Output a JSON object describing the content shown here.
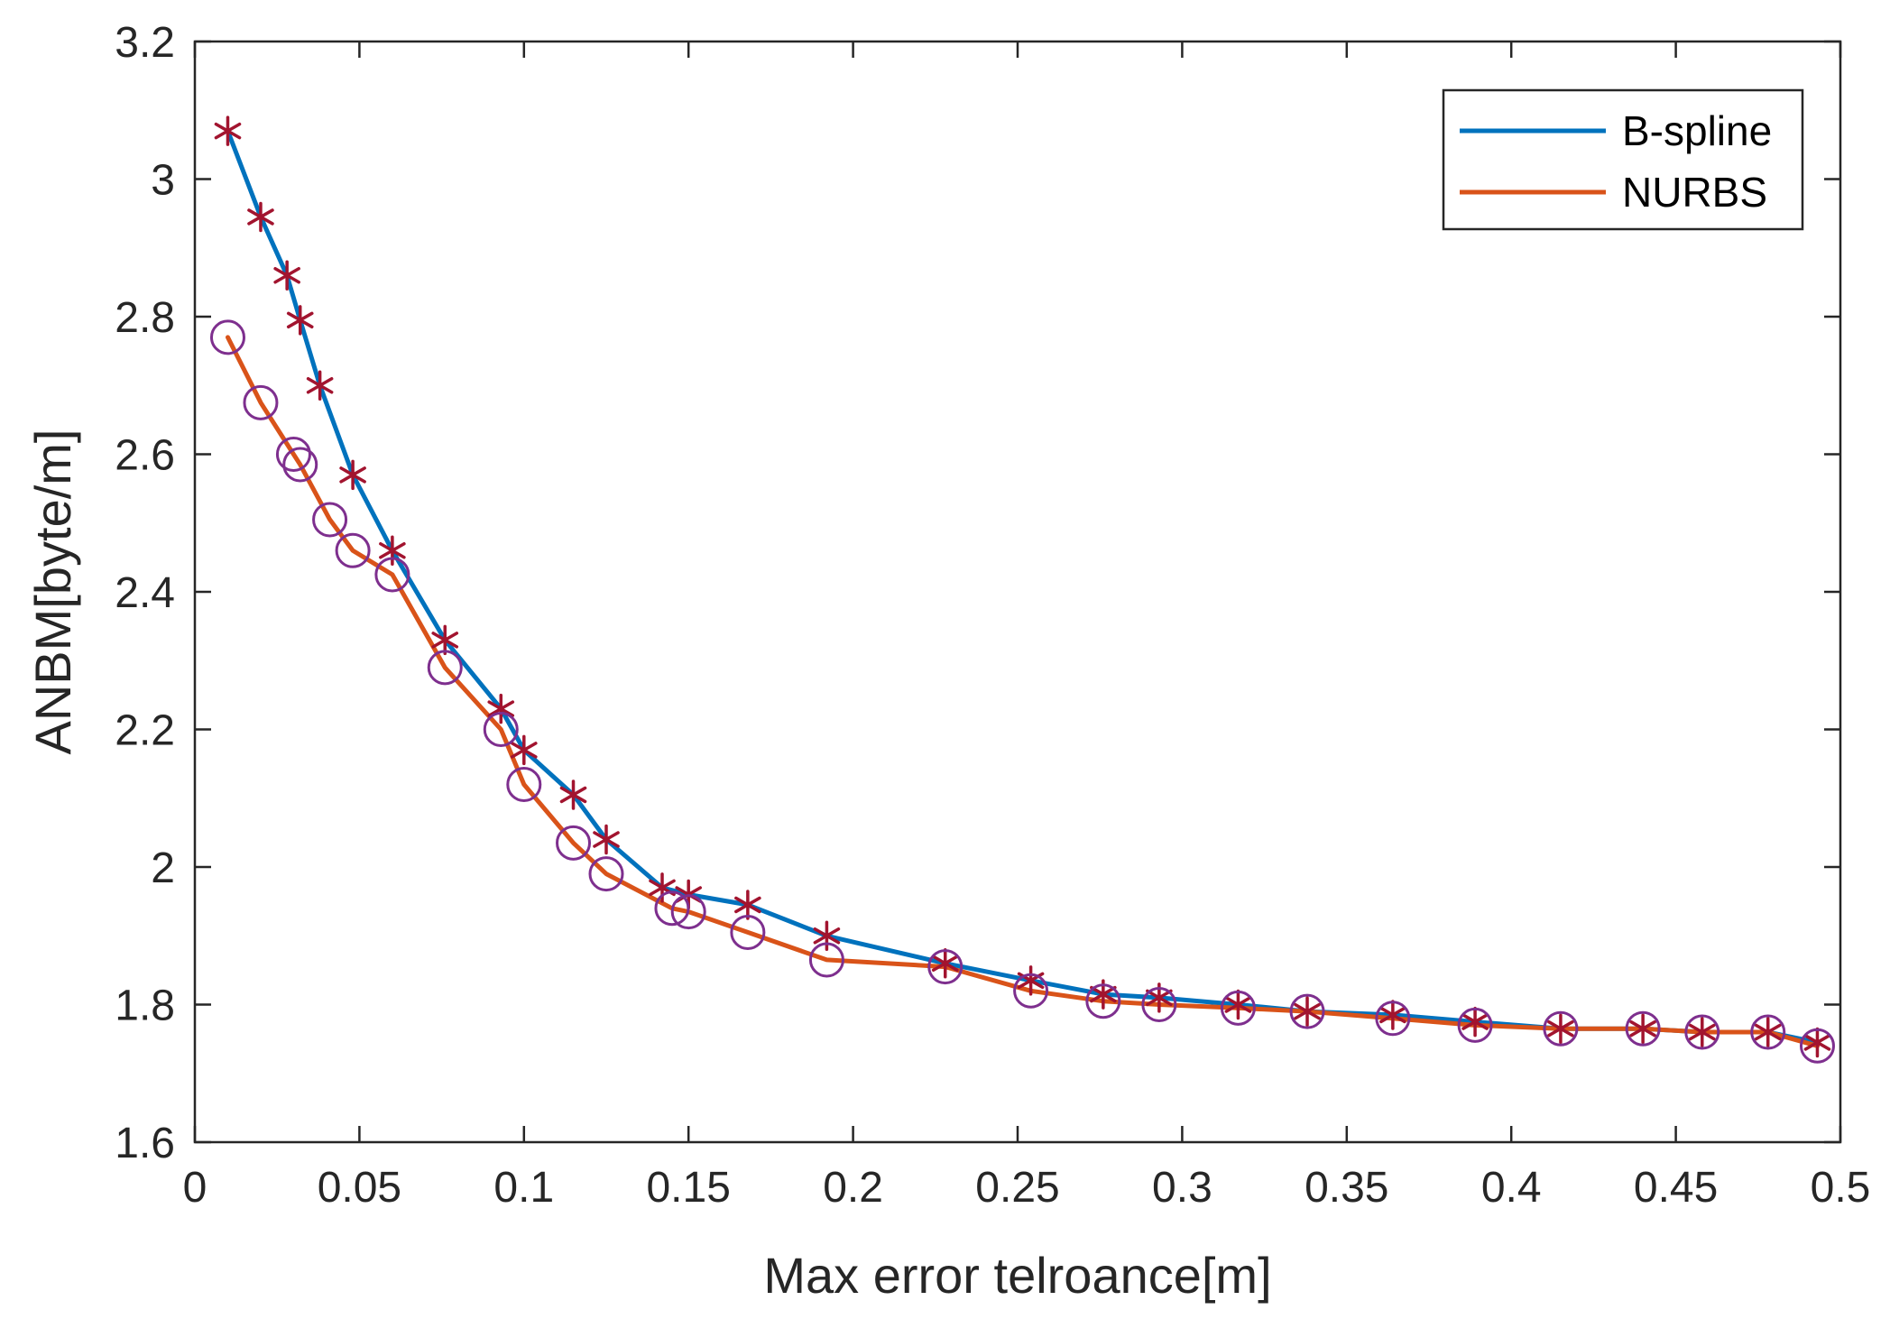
{
  "chart_data": {
    "type": "line",
    "title": "",
    "xlabel": "Max error telroance[m]",
    "ylabel": "ANBM[byte/m]",
    "xlim": [
      0,
      0.5
    ],
    "ylim": [
      1.6,
      3.2
    ],
    "grid": false,
    "legend_position": "top-right",
    "x_ticks": [
      0,
      0.05,
      0.1,
      0.15,
      0.2,
      0.25,
      0.3,
      0.35,
      0.4,
      0.45,
      0.5
    ],
    "x_tick_labels": [
      "0",
      "0.05",
      "0.1",
      "0.15",
      "0.2",
      "0.25",
      "0.3",
      "0.35",
      "0.4",
      "0.45",
      "0.5"
    ],
    "y_ticks": [
      1.6,
      1.8,
      2.0,
      2.2,
      2.4,
      2.6,
      2.8,
      3.0,
      3.2
    ],
    "y_tick_labels": [
      "1.6",
      "1.8",
      "2",
      "2.2",
      "2.4",
      "2.6",
      "2.8",
      "3",
      "3.2"
    ],
    "series": [
      {
        "name": "B-spline",
        "color": "#0072BD",
        "marker": "asterisk",
        "marker_color": "#A2142F",
        "x": [
          0.01,
          0.02,
          0.028,
          0.032,
          0.038,
          0.048,
          0.06,
          0.076,
          0.093,
          0.1,
          0.115,
          0.125,
          0.142,
          0.15,
          0.168,
          0.192,
          0.228,
          0.254,
          0.276,
          0.293,
          0.317,
          0.338,
          0.364,
          0.389,
          0.415,
          0.44,
          0.458,
          0.478,
          0.493
        ],
        "y": [
          3.07,
          2.945,
          2.86,
          2.795,
          2.7,
          2.57,
          2.46,
          2.33,
          2.23,
          2.17,
          2.105,
          2.04,
          1.97,
          1.96,
          1.945,
          1.9,
          1.86,
          1.835,
          1.815,
          1.81,
          1.8,
          1.79,
          1.785,
          1.775,
          1.765,
          1.765,
          1.76,
          1.76,
          1.745
        ]
      },
      {
        "name": "NURBS",
        "color": "#D95319",
        "marker": "circle",
        "marker_color": "#7E2F8E",
        "x": [
          0.01,
          0.02,
          0.03,
          0.032,
          0.041,
          0.048,
          0.06,
          0.076,
          0.093,
          0.1,
          0.115,
          0.125,
          0.145,
          0.15,
          0.168,
          0.192,
          0.228,
          0.254,
          0.276,
          0.293,
          0.317,
          0.338,
          0.364,
          0.389,
          0.415,
          0.44,
          0.458,
          0.478,
          0.493
        ],
        "y": [
          2.77,
          2.675,
          2.6,
          2.585,
          2.505,
          2.46,
          2.425,
          2.29,
          2.2,
          2.12,
          2.035,
          1.99,
          1.94,
          1.935,
          1.905,
          1.865,
          1.855,
          1.82,
          1.805,
          1.8,
          1.795,
          1.79,
          1.78,
          1.77,
          1.765,
          1.765,
          1.76,
          1.76,
          1.74
        ]
      }
    ]
  }
}
